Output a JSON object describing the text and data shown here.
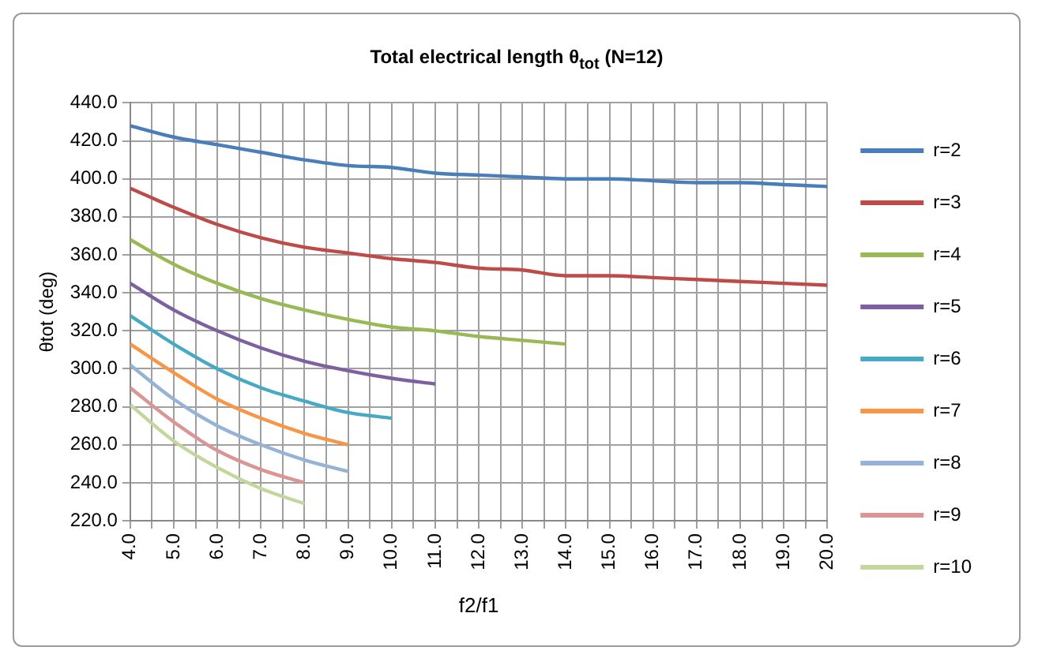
{
  "chart_data": {
    "type": "line",
    "title": "Total electrical length θ$_{tot}$ (N=12)",
    "xlabel": "f2/f1",
    "ylabel": "θtot (deg)",
    "xlim": [
      4,
      20
    ],
    "xticks": [
      {
        "value": 4,
        "label": "4.0"
      },
      {
        "value": 4.5,
        "label": null
      },
      {
        "value": 5,
        "label": "5.0"
      },
      {
        "value": 5.5,
        "label": null
      },
      {
        "value": 6,
        "label": "6.0"
      },
      {
        "value": 6.5,
        "label": null
      },
      {
        "value": 7,
        "label": "7.0"
      },
      {
        "value": 7.5,
        "label": null
      },
      {
        "value": 8,
        "label": "8.0"
      },
      {
        "value": 8.5,
        "label": null
      },
      {
        "value": 9,
        "label": "9.0"
      },
      {
        "value": 9.5,
        "label": null
      },
      {
        "value": 10,
        "label": "10.0"
      },
      {
        "value": 10.5,
        "label": null
      },
      {
        "value": 11,
        "label": "11.0"
      },
      {
        "value": 11.5,
        "label": null
      },
      {
        "value": 12,
        "label": "12.0"
      },
      {
        "value": 12.5,
        "label": null
      },
      {
        "value": 13,
        "label": "13.0"
      },
      {
        "value": 13.5,
        "label": null
      },
      {
        "value": 14,
        "label": "14.0"
      },
      {
        "value": 14.5,
        "label": null
      },
      {
        "value": 15,
        "label": "15.0"
      },
      {
        "value": 15.5,
        "label": null
      },
      {
        "value": 16,
        "label": "16.0"
      },
      {
        "value": 16.5,
        "label": null
      },
      {
        "value": 17,
        "label": "17.0"
      },
      {
        "value": 17.5,
        "label": null
      },
      {
        "value": 18,
        "label": "18.0"
      },
      {
        "value": 18.5,
        "label": null
      },
      {
        "value": 19,
        "label": "19.0"
      },
      {
        "value": 19.5,
        "label": null
      },
      {
        "value": 20,
        "label": "20.0"
      }
    ],
    "ylim": [
      220,
      440
    ],
    "yticks": [
      {
        "value": 220,
        "label": "220.0"
      },
      {
        "value": 240,
        "label": "240.0"
      },
      {
        "value": 260,
        "label": "260.0"
      },
      {
        "value": 280,
        "label": "280.0"
      },
      {
        "value": 300,
        "label": "300.0"
      },
      {
        "value": 320,
        "label": "320.0"
      },
      {
        "value": 340,
        "label": "340.0"
      },
      {
        "value": 360,
        "label": "360.0"
      },
      {
        "value": 380,
        "label": "380.0"
      },
      {
        "value": 400,
        "label": "400.0"
      },
      {
        "value": 420,
        "label": "420.0"
      },
      {
        "value": 440,
        "label": "440.0"
      }
    ],
    "grid": true,
    "legend": "right",
    "marker": "none",
    "line_style": "solid",
    "series": [
      {
        "name": "r=2",
        "color": "#4a7ebb",
        "x": [
          4,
          5,
          6,
          7,
          8,
          9,
          10,
          11,
          12,
          13,
          14,
          15,
          16,
          17,
          18,
          19,
          20
        ],
        "values": [
          428,
          422,
          418,
          414,
          410,
          407,
          406,
          403,
          402,
          401,
          400,
          400,
          399,
          398,
          398,
          397,
          396
        ]
      },
      {
        "name": "r=3",
        "color": "#be4b48",
        "x": [
          4,
          5,
          6,
          7,
          8,
          9,
          10,
          11,
          12,
          13,
          14,
          15,
          16,
          17,
          18,
          19,
          20
        ],
        "values": [
          395,
          385,
          376,
          369,
          364,
          361,
          358,
          356,
          353,
          352,
          349,
          349,
          348,
          347,
          346,
          345,
          344
        ]
      },
      {
        "name": "r=4",
        "color": "#98b954",
        "x": [
          4,
          5,
          6,
          7,
          8,
          9,
          10,
          11,
          12,
          13,
          14
        ],
        "values": [
          368,
          355,
          345,
          337,
          331,
          326,
          322,
          320,
          317,
          315,
          313
        ]
      },
      {
        "name": "r=5",
        "color": "#7d60a0",
        "x": [
          4,
          5,
          6,
          7,
          8,
          9,
          10,
          11
        ],
        "values": [
          345,
          331,
          320,
          311,
          304,
          299,
          295,
          292
        ]
      },
      {
        "name": "r=6",
        "color": "#46aac5",
        "x": [
          4,
          5,
          6,
          7,
          8,
          9,
          10
        ],
        "values": [
          328,
          313,
          300,
          290,
          283,
          277,
          274
        ]
      },
      {
        "name": "r=7",
        "color": "#f79646",
        "x": [
          4,
          5,
          6,
          7,
          8,
          9
        ],
        "values": [
          313,
          298,
          284,
          274,
          266,
          260
        ]
      },
      {
        "name": "r=8",
        "color": "#95b3d7",
        "x": [
          4,
          5,
          6,
          7,
          8,
          9
        ],
        "values": [
          302,
          284,
          270,
          260,
          252,
          246
        ]
      },
      {
        "name": "r=9",
        "color": "#d99694",
        "x": [
          4,
          5,
          6,
          7,
          8
        ],
        "values": [
          290,
          272,
          257,
          247,
          240
        ]
      },
      {
        "name": "r=10",
        "color": "#c3d69b",
        "x": [
          4,
          5,
          6,
          7,
          8
        ],
        "values": [
          281,
          262,
          248,
          237,
          229
        ]
      }
    ]
  }
}
